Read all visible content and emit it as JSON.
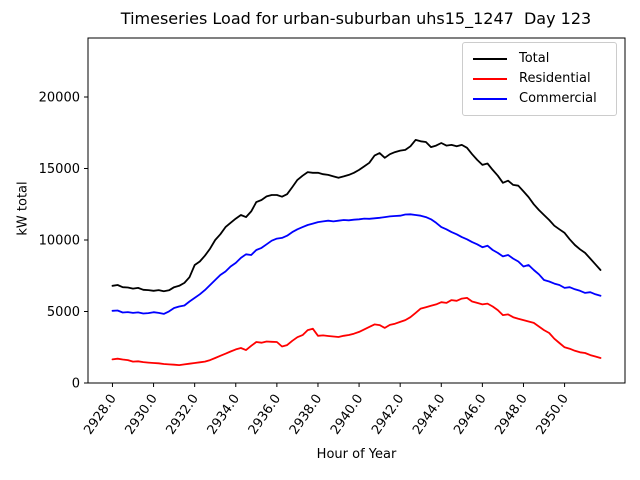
{
  "chart": {
    "title": "Timeseries Load for urban-suburban uhs15_1247  Day 123",
    "xlabel": "Hour of Year",
    "ylabel": "kW total"
  },
  "chart_data": {
    "type": "line",
    "title": "Timeseries Load for urban-suburban uhs15_1247  Day 123",
    "xlabel": "Hour of Year",
    "ylabel": "kW total",
    "grid": false,
    "legend_position": "upper right",
    "background": "#ffffff",
    "xlim": [
      2926.81,
      2952.94
    ],
    "ylim": [
      0,
      24126
    ],
    "xtick_values": [
      2928,
      2930,
      2932,
      2934,
      2936,
      2938,
      2940,
      2942,
      2944,
      2946,
      2948,
      2950
    ],
    "xtick_labels": [
      "2928.0",
      "2930.0",
      "2932.0",
      "2934.0",
      "2936.0",
      "2938.0",
      "2940.0",
      "2942.0",
      "2944.0",
      "2946.0",
      "2948.0",
      "2950.0"
    ],
    "ytick_values": [
      0,
      5000,
      10000,
      15000,
      20000
    ],
    "ytick_labels": [
      "0",
      "5000",
      "10000",
      "15000",
      "20000"
    ],
    "x": [
      2928.0,
      2928.25,
      2928.5,
      2928.75,
      2929.0,
      2929.25,
      2929.5,
      2929.75,
      2930.0,
      2930.25,
      2930.5,
      2930.75,
      2931.0,
      2931.25,
      2931.5,
      2931.75,
      2932.0,
      2932.25,
      2932.5,
      2932.75,
      2933.0,
      2933.25,
      2933.5,
      2933.75,
      2934.0,
      2934.25,
      2934.5,
      2934.75,
      2935.0,
      2935.25,
      2935.5,
      2935.75,
      2936.0,
      2936.25,
      2936.5,
      2936.75,
      2937.0,
      2937.25,
      2937.5,
      2937.75,
      2938.0,
      2938.25,
      2938.5,
      2938.75,
      2939.0,
      2939.25,
      2939.5,
      2939.75,
      2940.0,
      2940.25,
      2940.5,
      2940.75,
      2941.0,
      2941.25,
      2941.5,
      2941.75,
      2942.0,
      2942.25,
      2942.5,
      2942.75,
      2943.0,
      2943.25,
      2943.5,
      2943.75,
      2944.0,
      2944.25,
      2944.5,
      2944.75,
      2945.0,
      2945.25,
      2945.5,
      2945.75,
      2946.0,
      2946.25,
      2946.5,
      2946.75,
      2947.0,
      2947.25,
      2947.5,
      2947.75,
      2948.0,
      2948.25,
      2948.5,
      2948.75,
      2949.0,
      2949.25,
      2949.5,
      2949.75,
      2950.0,
      2950.25,
      2950.5,
      2950.75,
      2951.0,
      2951.25,
      2951.5,
      2951.75
    ],
    "series": [
      {
        "name": "Total",
        "color": "#000000",
        "values": [
          6800,
          6850,
          6700,
          6680,
          6600,
          6650,
          6520,
          6500,
          6450,
          6500,
          6420,
          6480,
          6700,
          6800,
          7000,
          7400,
          8250,
          8500,
          8900,
          9400,
          10000,
          10400,
          10900,
          11200,
          11500,
          11750,
          11600,
          12000,
          12650,
          12800,
          13050,
          13150,
          13150,
          13030,
          13200,
          13700,
          14200,
          14500,
          14750,
          14700,
          14700,
          14600,
          14550,
          14450,
          14350,
          14450,
          14550,
          14700,
          14900,
          15150,
          15400,
          15900,
          16080,
          15750,
          16000,
          16150,
          16250,
          16300,
          16550,
          17000,
          16900,
          16850,
          16500,
          16600,
          16780,
          16600,
          16650,
          16550,
          16650,
          16450,
          16000,
          15600,
          15250,
          15350,
          14900,
          14500,
          14000,
          14150,
          13850,
          13800,
          13400,
          13000,
          12500,
          12100,
          11750,
          11400,
          11000,
          10750,
          10500,
          10050,
          9650,
          9350,
          9100,
          8700,
          8300,
          7900
        ]
      },
      {
        "name": "Residential",
        "color": "#ff0000",
        "values": [
          1650,
          1700,
          1640,
          1600,
          1500,
          1520,
          1460,
          1430,
          1400,
          1380,
          1330,
          1300,
          1280,
          1250,
          1300,
          1350,
          1400,
          1450,
          1500,
          1600,
          1750,
          1900,
          2050,
          2200,
          2350,
          2450,
          2300,
          2600,
          2870,
          2820,
          2900,
          2880,
          2870,
          2550,
          2650,
          2950,
          3200,
          3350,
          3700,
          3800,
          3300,
          3330,
          3290,
          3250,
          3220,
          3300,
          3360,
          3450,
          3570,
          3750,
          3920,
          4100,
          4050,
          3850,
          4060,
          4150,
          4270,
          4400,
          4600,
          4900,
          5200,
          5300,
          5400,
          5500,
          5650,
          5600,
          5800,
          5750,
          5900,
          5950,
          5700,
          5600,
          5500,
          5550,
          5350,
          5100,
          4750,
          4800,
          4600,
          4500,
          4400,
          4300,
          4200,
          3950,
          3700,
          3500,
          3100,
          2800,
          2500,
          2400,
          2250,
          2150,
          2100,
          1950,
          1850,
          1750
        ]
      },
      {
        "name": "Commercial",
        "color": "#0000ff",
        "values": [
          5050,
          5070,
          4930,
          4960,
          4900,
          4940,
          4860,
          4890,
          4950,
          4900,
          4830,
          5010,
          5245,
          5350,
          5420,
          5700,
          5950,
          6200,
          6500,
          6850,
          7200,
          7550,
          7800,
          8150,
          8400,
          8750,
          9000,
          8950,
          9300,
          9450,
          9700,
          9950,
          10100,
          10150,
          10300,
          10550,
          10750,
          10900,
          11050,
          11150,
          11250,
          11300,
          11350,
          11300,
          11350,
          11400,
          11380,
          11420,
          11450,
          11500,
          11480,
          11520,
          11550,
          11600,
          11650,
          11680,
          11700,
          11780,
          11800,
          11750,
          11700,
          11600,
          11450,
          11200,
          10900,
          10750,
          10550,
          10400,
          10200,
          10050,
          9850,
          9700,
          9500,
          9600,
          9300,
          9100,
          8850,
          8950,
          8700,
          8500,
          8150,
          8250,
          7900,
          7600,
          7200,
          7100,
          6950,
          6850,
          6650,
          6700,
          6550,
          6450,
          6300,
          6350,
          6200,
          6100
        ]
      }
    ]
  }
}
